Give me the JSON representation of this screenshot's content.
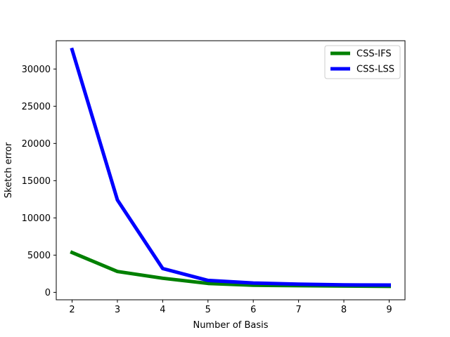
{
  "chart_data": {
    "type": "line",
    "title": "",
    "xlabel": "Number of Basis",
    "ylabel": "Sketch error",
    "x": [
      2,
      3,
      4,
      5,
      6,
      7,
      8,
      9
    ],
    "xlim": [
      1.65,
      9.35
    ],
    "ylim": [
      -1000,
      33800
    ],
    "xticks": [
      2,
      3,
      4,
      5,
      6,
      7,
      8,
      9
    ],
    "yticks": [
      0,
      5000,
      10000,
      15000,
      20000,
      25000,
      30000
    ],
    "grid": false,
    "legend_position": "upper right",
    "series": [
      {
        "name": "CSS-IFS",
        "color": "#008000",
        "values": [
          5350,
          2800,
          1900,
          1200,
          950,
          900,
          850,
          800
        ]
      },
      {
        "name": "CSS-LSS",
        "color": "#0000ff",
        "values": [
          32600,
          12400,
          3200,
          1600,
          1250,
          1100,
          1000,
          980
        ]
      }
    ]
  }
}
